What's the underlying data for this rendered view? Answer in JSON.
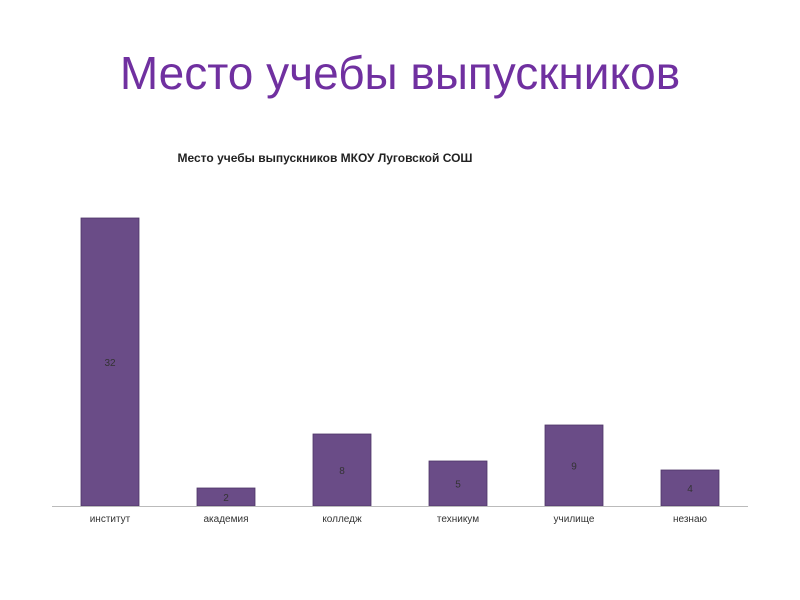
{
  "slide": {
    "title": "Место учебы выпускников"
  },
  "chart_data": {
    "type": "bar",
    "title": "Место учебы выпускников МКОУ Луговской СОШ",
    "categories": [
      "институт",
      "академия",
      "колледж",
      "техникум",
      "училище",
      "незнаю"
    ],
    "values": [
      32,
      2,
      8,
      5,
      9,
      4
    ],
    "xlabel": "",
    "ylabel": "",
    "ylim": [
      0,
      32
    ],
    "grid": false,
    "legend": "none",
    "colors": {
      "bar": "#6a4c87",
      "bar_edge": "#4e3566",
      "axis": "#bbbbbb"
    }
  }
}
